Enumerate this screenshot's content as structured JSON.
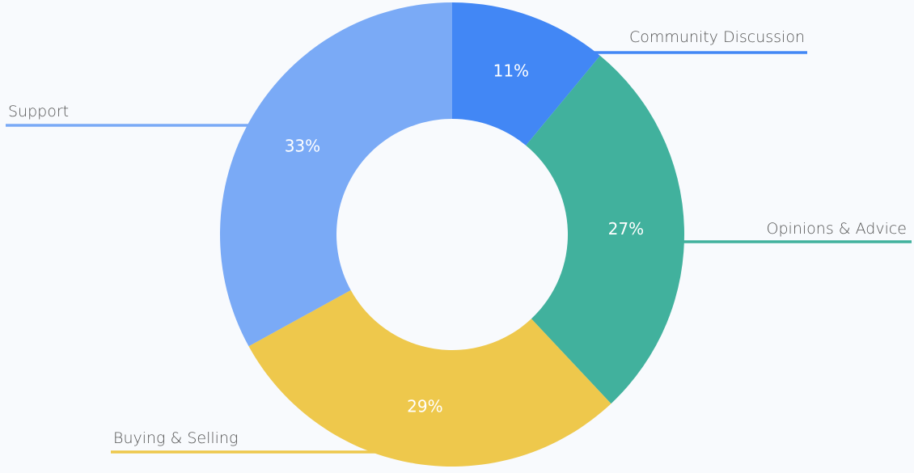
{
  "chart_data": {
    "type": "pie",
    "variant": "donut",
    "title": "",
    "categories": [
      "Community Discussion",
      "Opinions & Advice",
      "Buying & Selling",
      "Support"
    ],
    "values": [
      11,
      27,
      29,
      33
    ],
    "value_labels": [
      "11%",
      "27%",
      "29%",
      "33%"
    ],
    "colors": [
      "#4287f5",
      "#41b19d",
      "#eec84c",
      "#7aaaf6"
    ],
    "start": "top",
    "direction": "clockwise",
    "legend": "none (callout labels)"
  }
}
